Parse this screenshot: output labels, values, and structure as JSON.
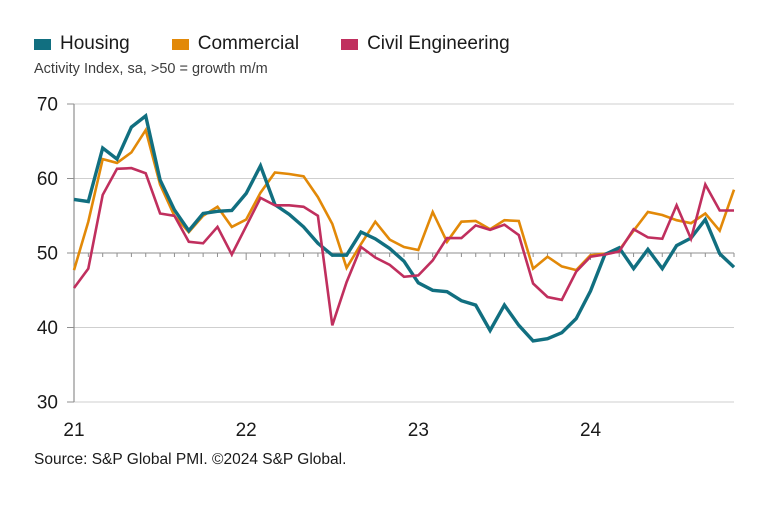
{
  "legend": {
    "items": [
      {
        "label": "Housing"
      },
      {
        "label": "Commercial"
      },
      {
        "label": "Civil Engineering"
      }
    ]
  },
  "subtitle": "Activity Index, sa, >50 = growth m/m",
  "source": "Source: S&P Global PMI. ©2024 S&P Global.",
  "chart_data": {
    "type": "line",
    "title": "",
    "xlabel": "",
    "ylabel": "Activity Index, sa, >50 = growth m/m",
    "ylim": [
      30,
      70
    ],
    "yticks": [
      30,
      40,
      50,
      60,
      70
    ],
    "baseline": 50,
    "grid": true,
    "legend_position": "top-left",
    "x_unit": "month",
    "categories": [
      "2021-01",
      "2021-02",
      "2021-03",
      "2021-04",
      "2021-05",
      "2021-06",
      "2021-07",
      "2021-08",
      "2021-09",
      "2021-10",
      "2021-11",
      "2021-12",
      "2022-01",
      "2022-02",
      "2022-03",
      "2022-04",
      "2022-05",
      "2022-06",
      "2022-07",
      "2022-08",
      "2022-09",
      "2022-10",
      "2022-11",
      "2022-12",
      "2023-01",
      "2023-02",
      "2023-03",
      "2023-04",
      "2023-05",
      "2023-06",
      "2023-07",
      "2023-08",
      "2023-09",
      "2023-10",
      "2023-11",
      "2023-12",
      "2024-01",
      "2024-02",
      "2024-03",
      "2024-04",
      "2024-05",
      "2024-06",
      "2024-07",
      "2024-08",
      "2024-09",
      "2024-10",
      "2024-11"
    ],
    "xticks_years": [
      {
        "label": "21",
        "month_index": 0
      },
      {
        "label": "22",
        "month_index": 12
      },
      {
        "label": "23",
        "month_index": 24
      },
      {
        "label": "24",
        "month_index": 36
      }
    ],
    "series": [
      {
        "name": "Housing",
        "color": "#116f80",
        "line_width": 3.4,
        "values": [
          57.2,
          56.9,
          64.1,
          62.6,
          66.9,
          68.4,
          59.8,
          55.8,
          53.0,
          55.3,
          55.6,
          55.7,
          58.0,
          61.7,
          56.5,
          55.2,
          53.5,
          51.3,
          49.7,
          49.7,
          52.8,
          51.9,
          50.6,
          48.9,
          46.0,
          45.0,
          44.8,
          43.6,
          43.0,
          39.6,
          43.0,
          40.3,
          38.2,
          38.5,
          39.3,
          41.2,
          44.9,
          49.8,
          50.7,
          47.9,
          50.5,
          47.9,
          51.0,
          52.0,
          54.5,
          49.9,
          48.1
        ]
      },
      {
        "name": "Commercial",
        "color": "#e28908",
        "line_width": 2.6,
        "values": [
          47.7,
          54.2,
          62.6,
          62.1,
          63.5,
          66.5,
          59.2,
          55.0,
          52.8,
          55.0,
          56.2,
          53.5,
          54.5,
          58.1,
          60.8,
          60.6,
          60.3,
          57.5,
          53.9,
          48.0,
          51.2,
          54.2,
          51.8,
          50.8,
          50.4,
          55.5,
          51.5,
          54.2,
          54.3,
          53.2,
          54.4,
          54.3,
          47.9,
          49.5,
          48.2,
          47.7,
          49.7,
          49.9,
          50.4,
          53.0,
          55.5,
          55.1,
          54.4,
          54.0,
          55.3,
          53.0,
          58.5
        ]
      },
      {
        "name": "Civil Engineering",
        "color": "#c02f5e",
        "line_width": 2.6,
        "values": [
          45.3,
          47.9,
          57.8,
          61.3,
          61.4,
          60.7,
          55.3,
          55.0,
          51.5,
          51.3,
          53.5,
          49.8,
          53.6,
          57.4,
          56.4,
          56.4,
          56.2,
          55.0,
          40.3,
          46.1,
          50.8,
          49.4,
          48.4,
          46.8,
          47.0,
          49.0,
          52.0,
          52.0,
          53.7,
          53.1,
          53.8,
          52.4,
          45.9,
          44.1,
          43.7,
          47.5,
          49.5,
          49.8,
          50.2,
          53.2,
          52.1,
          51.9,
          56.4,
          51.9,
          59.2,
          55.7,
          55.7
        ]
      }
    ],
    "colors": {
      "grid_light": "#cfcfcf",
      "axis_gray": "#8f8f8f",
      "label_text": "#1a1a1a"
    }
  }
}
